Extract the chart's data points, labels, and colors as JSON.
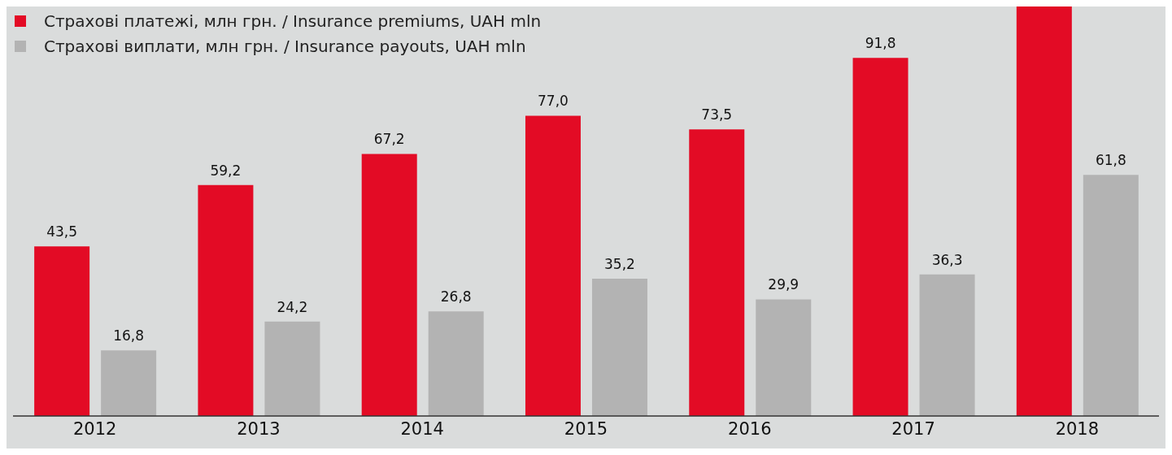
{
  "chart_data": {
    "type": "bar",
    "categories": [
      "2012",
      "2013",
      "2014",
      "2015",
      "2016",
      "2017",
      "2018"
    ],
    "series": [
      {
        "name": "Страхові платежі, млн грн. / Insurance premiums, UAH mln",
        "color": "#e30b25",
        "values": [
          43.5,
          59.2,
          67.2,
          77.0,
          73.5,
          91.8,
          105
        ],
        "value_labels": [
          "43,5",
          "59,2",
          "67,2",
          "77,0",
          "73,5",
          "91,8",
          null
        ]
      },
      {
        "name": "Страхові виплати, млн грн. / Insurance payouts, UAH mln",
        "color": "#b3b3b3",
        "values": [
          16.8,
          24.2,
          26.8,
          35.2,
          29.9,
          36.3,
          61.8
        ],
        "value_labels": [
          "16,8",
          "24,2",
          "26,8",
          "35,2",
          "29,9",
          "36,3",
          "61,8"
        ]
      }
    ],
    "legend": "top left",
    "grid": false
  }
}
